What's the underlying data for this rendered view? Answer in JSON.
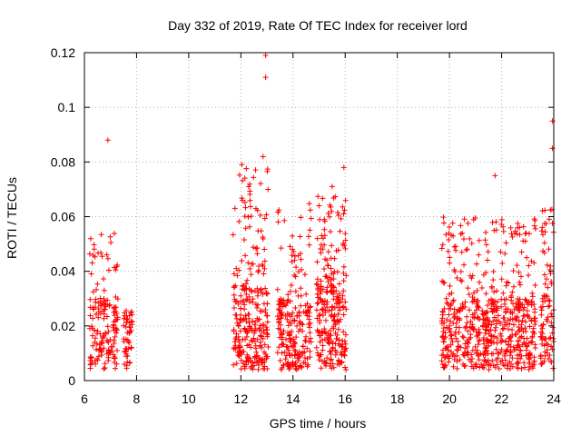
{
  "chart_data": {
    "type": "scatter",
    "title": "Day 332 of 2019, Rate Of TEC Index for receiver lord",
    "xlabel": "GPS time / hours",
    "ylabel": "ROTI / TECUs",
    "xlim": [
      6,
      24
    ],
    "ylim": [
      0,
      0.12
    ],
    "x_ticks": [
      6,
      8,
      10,
      12,
      14,
      16,
      18,
      20,
      22,
      24
    ],
    "x_tick_labels": [
      "6",
      "8",
      "10",
      "12",
      "14",
      "16",
      "18",
      "20",
      "22",
      "24"
    ],
    "y_ticks": [
      0,
      0.02,
      0.04,
      0.06,
      0.08,
      0.1,
      0.12
    ],
    "y_tick_labels": [
      "0",
      "0.02",
      "0.04",
      "0.06",
      "0.08",
      "0.1",
      "0.12"
    ],
    "grid": true,
    "marker": "+",
    "series_color": "#ff0000",
    "clusters": [
      {
        "x_start": 6.2,
        "x_end": 7.3,
        "y_typical_max": 0.03,
        "y_peak": 0.055,
        "density": 160
      },
      {
        "x_start": 7.5,
        "x_end": 7.85,
        "y_typical_max": 0.022,
        "y_peak": 0.026,
        "density": 50
      },
      {
        "x_start": 11.7,
        "x_end": 13.05,
        "y_typical_max": 0.035,
        "y_peak": 0.08,
        "density": 280
      },
      {
        "x_start": 13.4,
        "x_end": 14.7,
        "y_typical_max": 0.03,
        "y_peak": 0.065,
        "density": 220
      },
      {
        "x_start": 14.9,
        "x_end": 16.05,
        "y_typical_max": 0.04,
        "y_peak": 0.07,
        "density": 260
      },
      {
        "x_start": 19.7,
        "x_end": 23.3,
        "y_typical_max": 0.03,
        "y_peak": 0.06,
        "density": 620
      },
      {
        "x_start": 23.5,
        "x_end": 24.0,
        "y_typical_max": 0.03,
        "y_peak": 0.063,
        "density": 90
      }
    ],
    "outliers": [
      {
        "x": 6.9,
        "y": 0.088
      },
      {
        "x": 12.95,
        "y": 0.119
      },
      {
        "x": 12.95,
        "y": 0.111
      },
      {
        "x": 12.85,
        "y": 0.082
      },
      {
        "x": 15.95,
        "y": 0.078
      },
      {
        "x": 21.75,
        "y": 0.075
      },
      {
        "x": 23.95,
        "y": 0.095
      },
      {
        "x": 23.95,
        "y": 0.085
      },
      {
        "x": 15.5,
        "y": 0.071
      },
      {
        "x": 12.3,
        "y": 0.071
      }
    ]
  }
}
